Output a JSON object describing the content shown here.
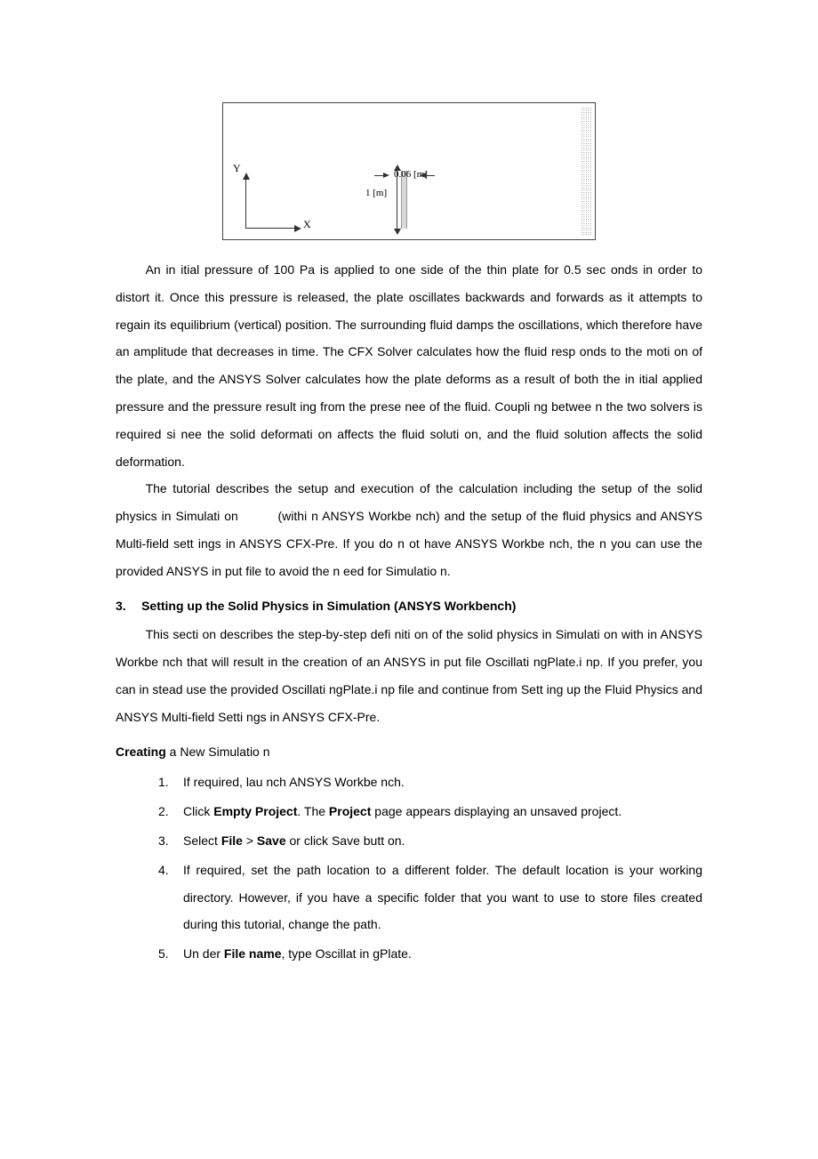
{
  "figure": {
    "width_label": "0.06 [m]",
    "height_label": "1 [m]",
    "x_axis": "X",
    "y_axis": "Y"
  },
  "para1": "An in itial pressure of 100 Pa is applied to one side of the thin plate for 0.5 sec onds in order to distort it. Once this pressure is released, the plate oscillates backwards and forwards as it attempts to regain its equilibrium (vertical) position. The surrounding fluid damps the oscillations, which therefore have an amplitude that decreases in time. The CFX Solver calculates how the fluid resp onds to the moti on of the plate, and the ANSYS Solver calculates how the plate deforms as a result of both the in itial applied pressure and the pressure result ing from the prese nee of the fluid. Coupli ng betwee n the two solvers is required si nee the solid deformati on affects the fluid soluti on, and the fluid solution affects the solid deformation.",
  "para2_a": "The tutorial describes the setup and execution of the calculation including the setup of the solid physics in Simulati on",
  "para2_b": "(withi n ANSYS Workbe nch) and the setup of the fluid physics and ANSYS Multi-field sett ings in ANSYS CFX-Pre. If you do n ot have ANSYS Workbe nch, the n you can use the provided ANSYS in put file to avoid the n eed for Simulatio n.",
  "section": {
    "num": "3.",
    "title": "Setting up the Solid Physics in Simulation (ANSYS Workbench)"
  },
  "para3": "This secti on describes the step-by-step defi niti on of the solid physics in Simulati on with in ANSYS Workbe nch that will result in the creation of an ANSYS in put file Oscillati ngPlate.i np. If you prefer, you can in stead use the provided Oscillati ngPlate.i np file and continue from Sett ing up the Fluid Physics and ANSYS Multi-field Setti ngs in ANSYS CFX-Pre.",
  "subhead_b": "Creating",
  "subhead_r": " a New Simulatio n",
  "steps": {
    "s1": "If required, lau nch ANSYS Workbe nch.",
    "s2_a": "Click ",
    "s2_b1": "Empty Project",
    "s2_c": ". The ",
    "s2_b2": "Project",
    "s2_d": " page appears displaying an unsaved project.",
    "s3_a": "Select ",
    "s3_b1": "File",
    "s3_c": " > ",
    "s3_b2": "Save",
    "s3_d": " or click Save butt on.",
    "s4": "If required, set the path location to a different folder. The default location is your working directory. However, if you have a specific folder that you want to use to store files created during this tutorial, change the path.",
    "s5_a": "Un der ",
    "s5_b": "File name",
    "s5_c": ", type Oscillat in gPlate."
  }
}
